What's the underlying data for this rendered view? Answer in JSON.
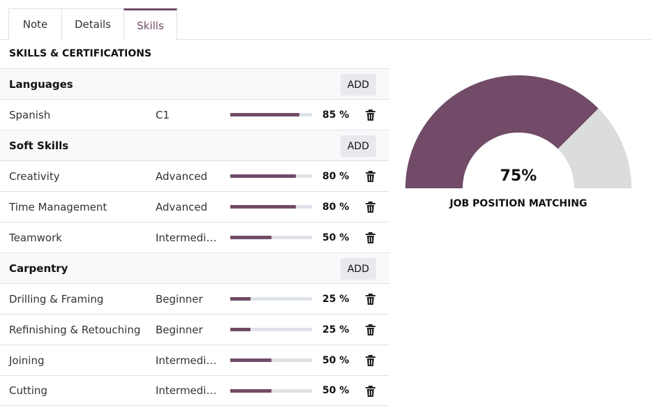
{
  "tabs": [
    {
      "label": "Note"
    },
    {
      "label": "Details"
    },
    {
      "label": "Skills"
    }
  ],
  "section_title": "SKILLS & CERTIFICATIONS",
  "add_label": "ADD",
  "groups": [
    {
      "name": "Languages",
      "skills": [
        {
          "name": "Spanish",
          "level": "C1",
          "progress": 85,
          "pct": "85 %"
        }
      ]
    },
    {
      "name": "Soft Skills",
      "skills": [
        {
          "name": "Creativity",
          "level": "Advanced",
          "progress": 80,
          "pct": "80 %"
        },
        {
          "name": "Time Management",
          "level": "Advanced",
          "progress": 80,
          "pct": "80 %"
        },
        {
          "name": "Teamwork",
          "level": "Intermediate",
          "progress": 50,
          "pct": "50 %"
        }
      ]
    },
    {
      "name": "Carpentry",
      "skills": [
        {
          "name": "Drilling & Framing",
          "level": "Beginner",
          "progress": 25,
          "pct": "25 %"
        },
        {
          "name": "Refinishing & Retouching",
          "level": "Beginner",
          "progress": 25,
          "pct": "25 %"
        },
        {
          "name": "Joining",
          "level": "Intermediate",
          "progress": 50,
          "pct": "50 %"
        },
        {
          "name": "Cutting",
          "level": "Intermediate",
          "progress": 50,
          "pct": "50 %"
        }
      ]
    }
  ],
  "gauge": {
    "value": 75,
    "value_label": "75%",
    "label": "JOB POSITION MATCHING"
  },
  "colors": {
    "accent": "#714b67",
    "track": "#dcdcdc"
  },
  "icons": {
    "delete": "trash-icon"
  }
}
